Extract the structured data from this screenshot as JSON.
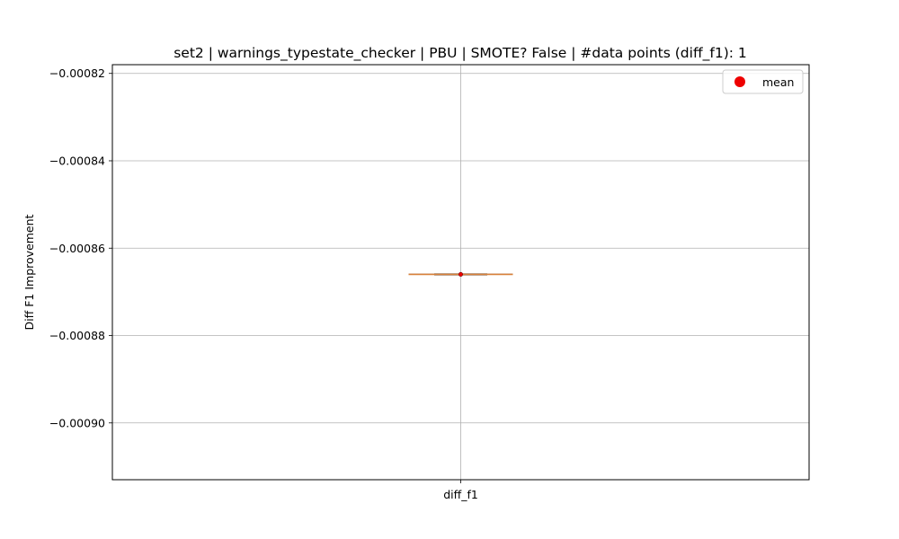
{
  "chart_data": {
    "type": "box",
    "title": "set2 | warnings_typestate_checker | PBU | SMOTE? False | #data points (diff_f1): 1",
    "xlabel": "",
    "ylabel": "Diff F1 Improvement",
    "categories": [
      "diff_f1"
    ],
    "ylim": [
      -0.000913,
      -0.000818
    ],
    "yticks": [
      -0.00082,
      -0.00084,
      -0.00086,
      -0.00088,
      -0.0009
    ],
    "ytick_labels": [
      "−0.00082",
      "−0.00084",
      "−0.00086",
      "−0.00088",
      "−0.00090"
    ],
    "grid": true,
    "legend": {
      "position": "top-right",
      "entries": [
        "mean"
      ]
    },
    "series": [
      {
        "name": "diff_f1",
        "n": 1,
        "min": -0.000866,
        "q1": -0.000866,
        "median": -0.000866,
        "q3": -0.000866,
        "max": -0.000866,
        "mean": -0.000866
      }
    ],
    "colors": {
      "median": "#d9823b",
      "mean": "#ee0000",
      "box": "#000000",
      "grid": "#b0b0b0"
    }
  }
}
